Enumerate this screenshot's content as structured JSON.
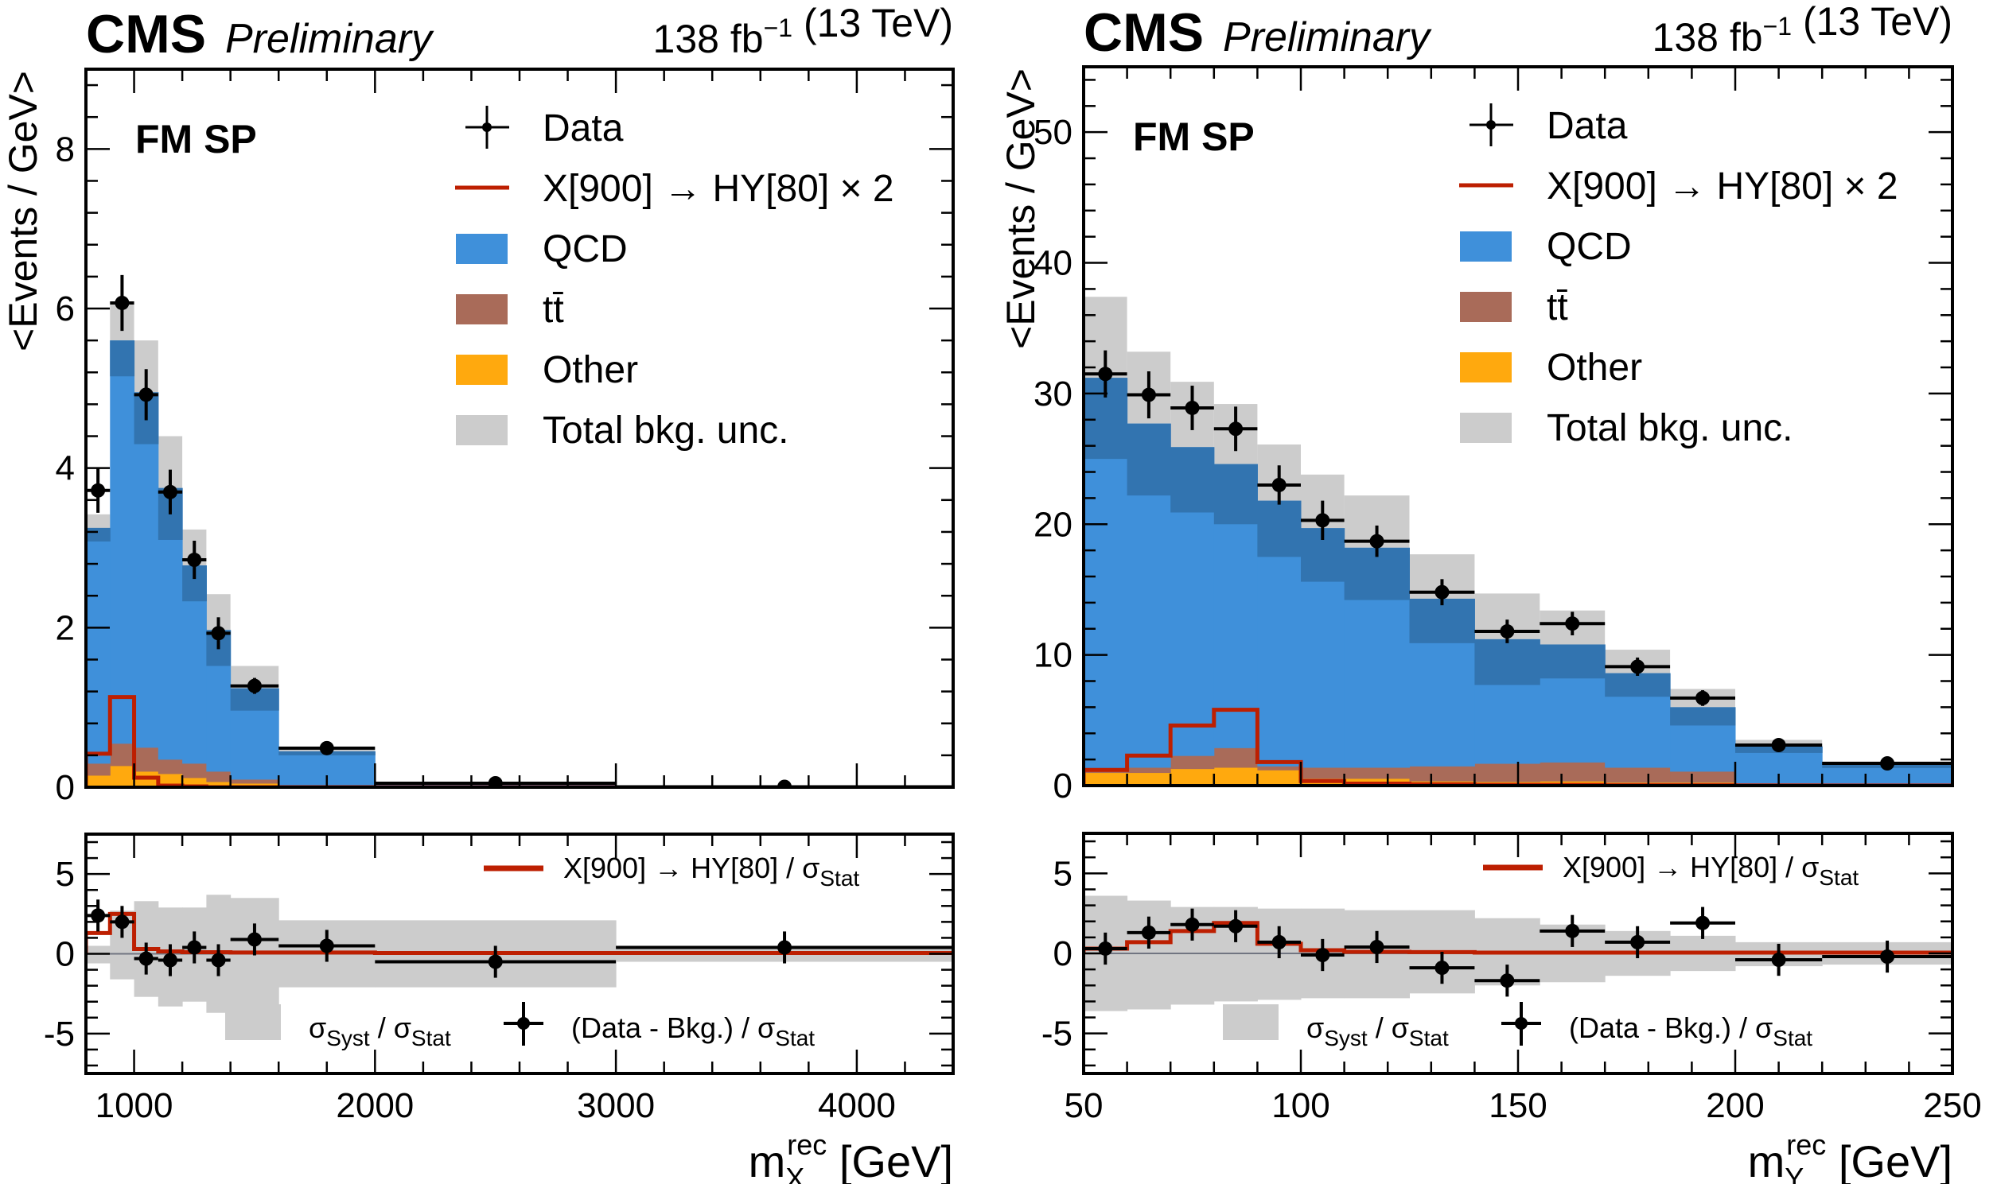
{
  "chart_data": [
    {
      "type": "bar",
      "id": "mx",
      "header": {
        "experiment": "CMS",
        "status": "Preliminary",
        "lumi": "138 fb",
        "lumi_exp": "−1",
        "energy": "(13 TeV)"
      },
      "region_label": "FM SP",
      "ylabel": "<Events / GeV>",
      "xlabel_main": "m",
      "xlabel_sub": "X",
      "xlabel_sup": "rec",
      "xlabel_unit": "[GeV]",
      "xlim": [
        800,
        4400
      ],
      "ylim": [
        0,
        9
      ],
      "xticks": [
        1000,
        2000,
        3000,
        4000
      ],
      "yticks": [
        0,
        2,
        4,
        6,
        8
      ],
      "bin_edges": [
        800,
        900,
        1000,
        1100,
        1200,
        1300,
        1400,
        1600,
        2000,
        3000,
        4400
      ],
      "series": [
        {
          "name": "Other",
          "kind": "stack",
          "color": "#ffa90e",
          "values": [
            0.15,
            0.27,
            0.2,
            0.17,
            0.12,
            0.07,
            0.05,
            0.02,
            0.005,
            0.0
          ]
        },
        {
          "name": "tt̄",
          "kind": "stack",
          "color": "#a96b59",
          "values": [
            0.15,
            0.28,
            0.3,
            0.18,
            0.18,
            0.13,
            0.05,
            0.0,
            0.0,
            0.0
          ]
        },
        {
          "name": "QCD",
          "kind": "stack",
          "color": "#3f90da",
          "values": [
            2.95,
            5.05,
            4.45,
            3.4,
            2.48,
            1.77,
            1.14,
            0.43,
            0.035,
            0.005
          ]
        },
        {
          "name": "Total bkg. unc.",
          "kind": "band",
          "color": "#cccccc",
          "values": [
            0.17,
            0.45,
            0.65,
            0.65,
            0.45,
            0.45,
            0.28,
            0.05,
            0.01,
            0.002
          ]
        },
        {
          "name": "QCD unc. (dark)",
          "kind": "inner",
          "color": "#3274b0",
          "values": [
            0.17,
            0.45,
            0.65,
            0.65,
            0.45,
            0.45,
            0.28,
            0.05,
            0.01,
            0.002
          ]
        },
        {
          "name": "X[900] → HY[80] × 2",
          "kind": "signal",
          "color": "#bd1f01",
          "values": [
            0.42,
            1.13,
            0.12,
            0.02,
            0.01,
            0.0,
            0.0,
            0.0,
            0.0,
            0.0
          ]
        },
        {
          "name": "Data",
          "kind": "data",
          "color": "#000000",
          "values": [
            3.72,
            6.07,
            4.92,
            3.7,
            2.85,
            1.93,
            1.27,
            0.49,
            0.05,
            0.005
          ],
          "errors": [
            0.28,
            0.35,
            0.32,
            0.28,
            0.24,
            0.2,
            0.1,
            0.04,
            0.01,
            0.002
          ]
        }
      ],
      "legend": [
        "Data",
        "X[900] → HY[80] × 2",
        "QCD",
        "tt̄",
        "Other",
        "Total bkg. unc."
      ],
      "legend_position": "top-right",
      "ratio": {
        "ylim": [
          -7.5,
          7.5
        ],
        "yticks": [
          -5,
          0,
          5
        ],
        "syst_up": [
          0.5,
          2.7,
          3.3,
          2.9,
          2.9,
          3.7,
          3.5,
          2.1,
          2.1,
          0.5
        ],
        "syst_down": [
          -0.6,
          -1.6,
          -2.7,
          -3.3,
          -3.0,
          -3.7,
          -3.5,
          -2.1,
          -2.1,
          -0.5
        ],
        "signal": [
          1.3,
          2.5,
          0.3,
          0.15,
          0.1,
          0.1,
          0.08,
          0.08,
          0.05,
          0.05
        ],
        "pulls": [
          2.4,
          2.0,
          -0.3,
          -0.4,
          0.4,
          -0.4,
          0.9,
          0.5,
          -0.5,
          0.4
        ],
        "pull_errors": [
          1.0,
          1.0,
          1.0,
          1.0,
          1.0,
          1.0,
          1.0,
          1.0,
          1.0,
          1.0
        ],
        "legend_signal": "X[900] → HY[80] / σ",
        "legend_signal_sub": "Stat",
        "legend_syst": "σ",
        "legend_syst_sub": "Syst",
        "legend_syst_rest": " / σ",
        "legend_syst_sub2": "Stat",
        "legend_pull": "(Data - Bkg.) / σ",
        "legend_pull_sub": "Stat"
      }
    },
    {
      "type": "bar",
      "id": "my",
      "header": {
        "experiment": "CMS",
        "status": "Preliminary",
        "lumi": "138 fb",
        "lumi_exp": "−1",
        "energy": "(13 TeV)"
      },
      "region_label": "FM SP",
      "ylabel": "<Events / GeV>",
      "xlabel_main": "m",
      "xlabel_sub": "Y",
      "xlabel_sup": "rec",
      "xlabel_unit": "[GeV]",
      "xlim": [
        50,
        250
      ],
      "ylim": [
        0,
        55
      ],
      "xticks": [
        50,
        100,
        150,
        200,
        250
      ],
      "yticks": [
        0,
        10,
        20,
        30,
        40,
        50
      ],
      "bin_edges": [
        50,
        60,
        70,
        80,
        90,
        100,
        110,
        125,
        140,
        155,
        170,
        185,
        200,
        220,
        250
      ],
      "series": [
        {
          "name": "Other",
          "kind": "stack",
          "color": "#ffa90e",
          "values": [
            1.0,
            1.0,
            1.3,
            1.4,
            1.2,
            0.55,
            0.55,
            0.35,
            0.3,
            0.35,
            0.25,
            0.25,
            0.1,
            0.05
          ]
        },
        {
          "name": "tt̄",
          "kind": "stack",
          "color": "#a96b59",
          "values": [
            0.3,
            0.4,
            1.0,
            1.5,
            0.3,
            0.85,
            0.85,
            1.15,
            1.4,
            1.45,
            1.15,
            0.85,
            0.1,
            0.05
          ]
        },
        {
          "name": "QCD",
          "kind": "stack",
          "color": "#3f90da",
          "values": [
            29.9,
            26.3,
            23.6,
            21.7,
            20.3,
            18.3,
            16.8,
            12.8,
            9.5,
            9.0,
            7.2,
            4.9,
            2.8,
            1.5
          ]
        },
        {
          "name": "Total bkg. unc.",
          "kind": "band",
          "color": "#cccccc",
          "values": [
            6.2,
            5.5,
            5.0,
            4.6,
            4.3,
            4.1,
            4.0,
            3.4,
            3.5,
            2.6,
            1.8,
            1.4,
            0.5,
            0.25
          ]
        },
        {
          "name": "QCD unc. (dark)",
          "kind": "inner",
          "color": "#3274b0",
          "values": [
            6.2,
            5.5,
            5.0,
            4.6,
            4.3,
            4.1,
            4.0,
            3.4,
            3.5,
            2.6,
            1.8,
            1.4,
            0.5,
            0.25
          ]
        },
        {
          "name": "X[900] → HY[80] × 2",
          "kind": "signal",
          "color": "#bd1f01",
          "values": [
            1.2,
            2.3,
            4.6,
            5.8,
            1.8,
            0.35,
            0.15,
            0.1,
            0.05,
            0.05,
            0.02,
            0.02,
            0.01,
            0.01
          ]
        },
        {
          "name": "Data",
          "kind": "data",
          "color": "#000000",
          "values": [
            31.5,
            29.9,
            28.9,
            27.3,
            23.0,
            20.3,
            18.7,
            14.8,
            11.8,
            12.4,
            9.1,
            6.7,
            3.1,
            1.7
          ],
          "errors": [
            1.8,
            1.8,
            1.7,
            1.7,
            1.5,
            1.5,
            1.2,
            1.0,
            0.9,
            0.9,
            0.7,
            0.6,
            0.3,
            0.2
          ]
        }
      ],
      "legend": [
        "Data",
        "X[900] → HY[80] × 2",
        "QCD",
        "tt̄",
        "Other",
        "Total bkg. unc."
      ],
      "legend_position": "top-right",
      "ratio": {
        "ylim": [
          -7.5,
          7.5
        ],
        "yticks": [
          -5,
          0,
          5
        ],
        "syst_up": [
          3.6,
          3.3,
          2.9,
          2.9,
          2.8,
          2.8,
          2.7,
          2.7,
          2.2,
          1.8,
          1.4,
          1.1,
          0.7,
          0.7
        ],
        "syst_down": [
          -3.6,
          -3.5,
          -3.2,
          -3.0,
          -2.9,
          -2.8,
          -2.8,
          -2.5,
          -2.0,
          -1.8,
          -1.4,
          -1.1,
          -0.8,
          -0.7
        ],
        "signal": [
          0.3,
          0.7,
          1.4,
          1.9,
          0.6,
          0.2,
          0.1,
          0.08,
          0.05,
          0.05,
          0.05,
          0.05,
          0.05,
          0.05
        ],
        "pulls": [
          0.3,
          1.3,
          1.8,
          1.7,
          0.7,
          -0.1,
          0.4,
          -0.9,
          -1.7,
          1.4,
          0.7,
          1.9,
          -0.4,
          -0.2
        ],
        "pull_errors": [
          1.0,
          1.0,
          1.0,
          1.0,
          1.0,
          1.0,
          1.0,
          1.0,
          1.0,
          1.0,
          1.0,
          1.0,
          1.0,
          1.0
        ],
        "legend_signal": "X[900] → HY[80] / σ",
        "legend_signal_sub": "Stat",
        "legend_syst": "σ",
        "legend_syst_sub": "Syst",
        "legend_syst_rest": " / σ",
        "legend_syst_sub2": "Stat",
        "legend_pull": "(Data - Bkg.) / σ",
        "legend_pull_sub": "Stat"
      }
    }
  ]
}
